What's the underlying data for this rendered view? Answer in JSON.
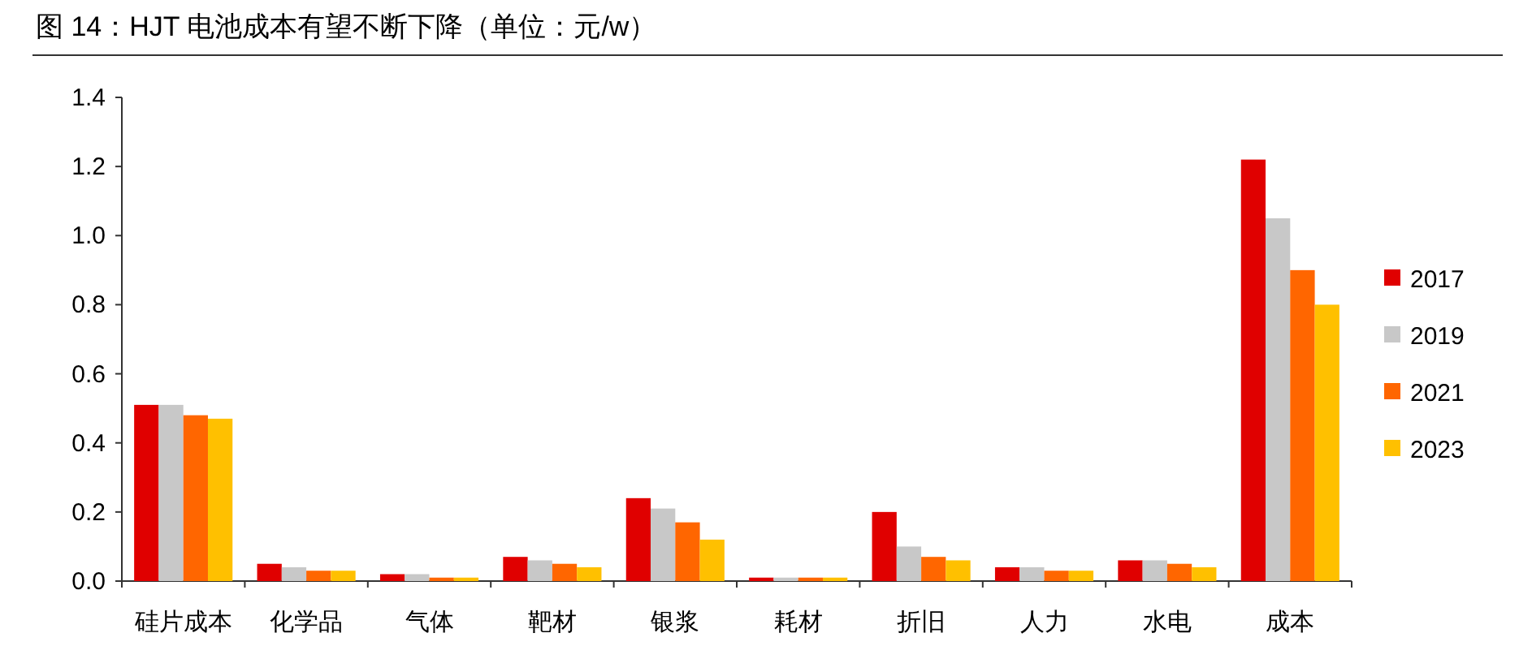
{
  "chart_data": {
    "type": "bar",
    "title": "图 14：HJT 电池成本有望不断下降（单位：元/w）",
    "categories": [
      "硅片成本",
      "化学品",
      "气体",
      "靶材",
      "银浆",
      "耗材",
      "折旧",
      "人力",
      "水电",
      "成本"
    ],
    "series": [
      {
        "name": "2017",
        "color": "#e00000",
        "values": [
          0.51,
          0.05,
          0.02,
          0.07,
          0.24,
          0.01,
          0.2,
          0.04,
          0.06,
          1.22
        ]
      },
      {
        "name": "2019",
        "color": "#c8c8c8",
        "values": [
          0.51,
          0.04,
          0.02,
          0.06,
          0.21,
          0.01,
          0.1,
          0.04,
          0.06,
          1.05
        ]
      },
      {
        "name": "2021",
        "color": "#ff6600",
        "values": [
          0.48,
          0.03,
          0.01,
          0.05,
          0.17,
          0.01,
          0.07,
          0.03,
          0.05,
          0.9
        ]
      },
      {
        "name": "2023",
        "color": "#ffc000",
        "values": [
          0.47,
          0.03,
          0.01,
          0.04,
          0.12,
          0.01,
          0.06,
          0.03,
          0.04,
          0.8
        ]
      }
    ],
    "ylim": [
      0,
      1.4
    ],
    "yticks": [
      {
        "value": 0,
        "label": "0.0"
      },
      {
        "value": 0.2,
        "label": "0.2"
      },
      {
        "value": 0.4,
        "label": "0.4"
      },
      {
        "value": 0.6,
        "label": "0.6"
      },
      {
        "value": 0.8,
        "label": "0.8"
      },
      {
        "value": 1,
        "label": "1.0"
      },
      {
        "value": 1.2,
        "label": "1.2"
      },
      {
        "value": 1.4,
        "label": "1.4"
      }
    ],
    "grid": false,
    "legend": "right"
  }
}
